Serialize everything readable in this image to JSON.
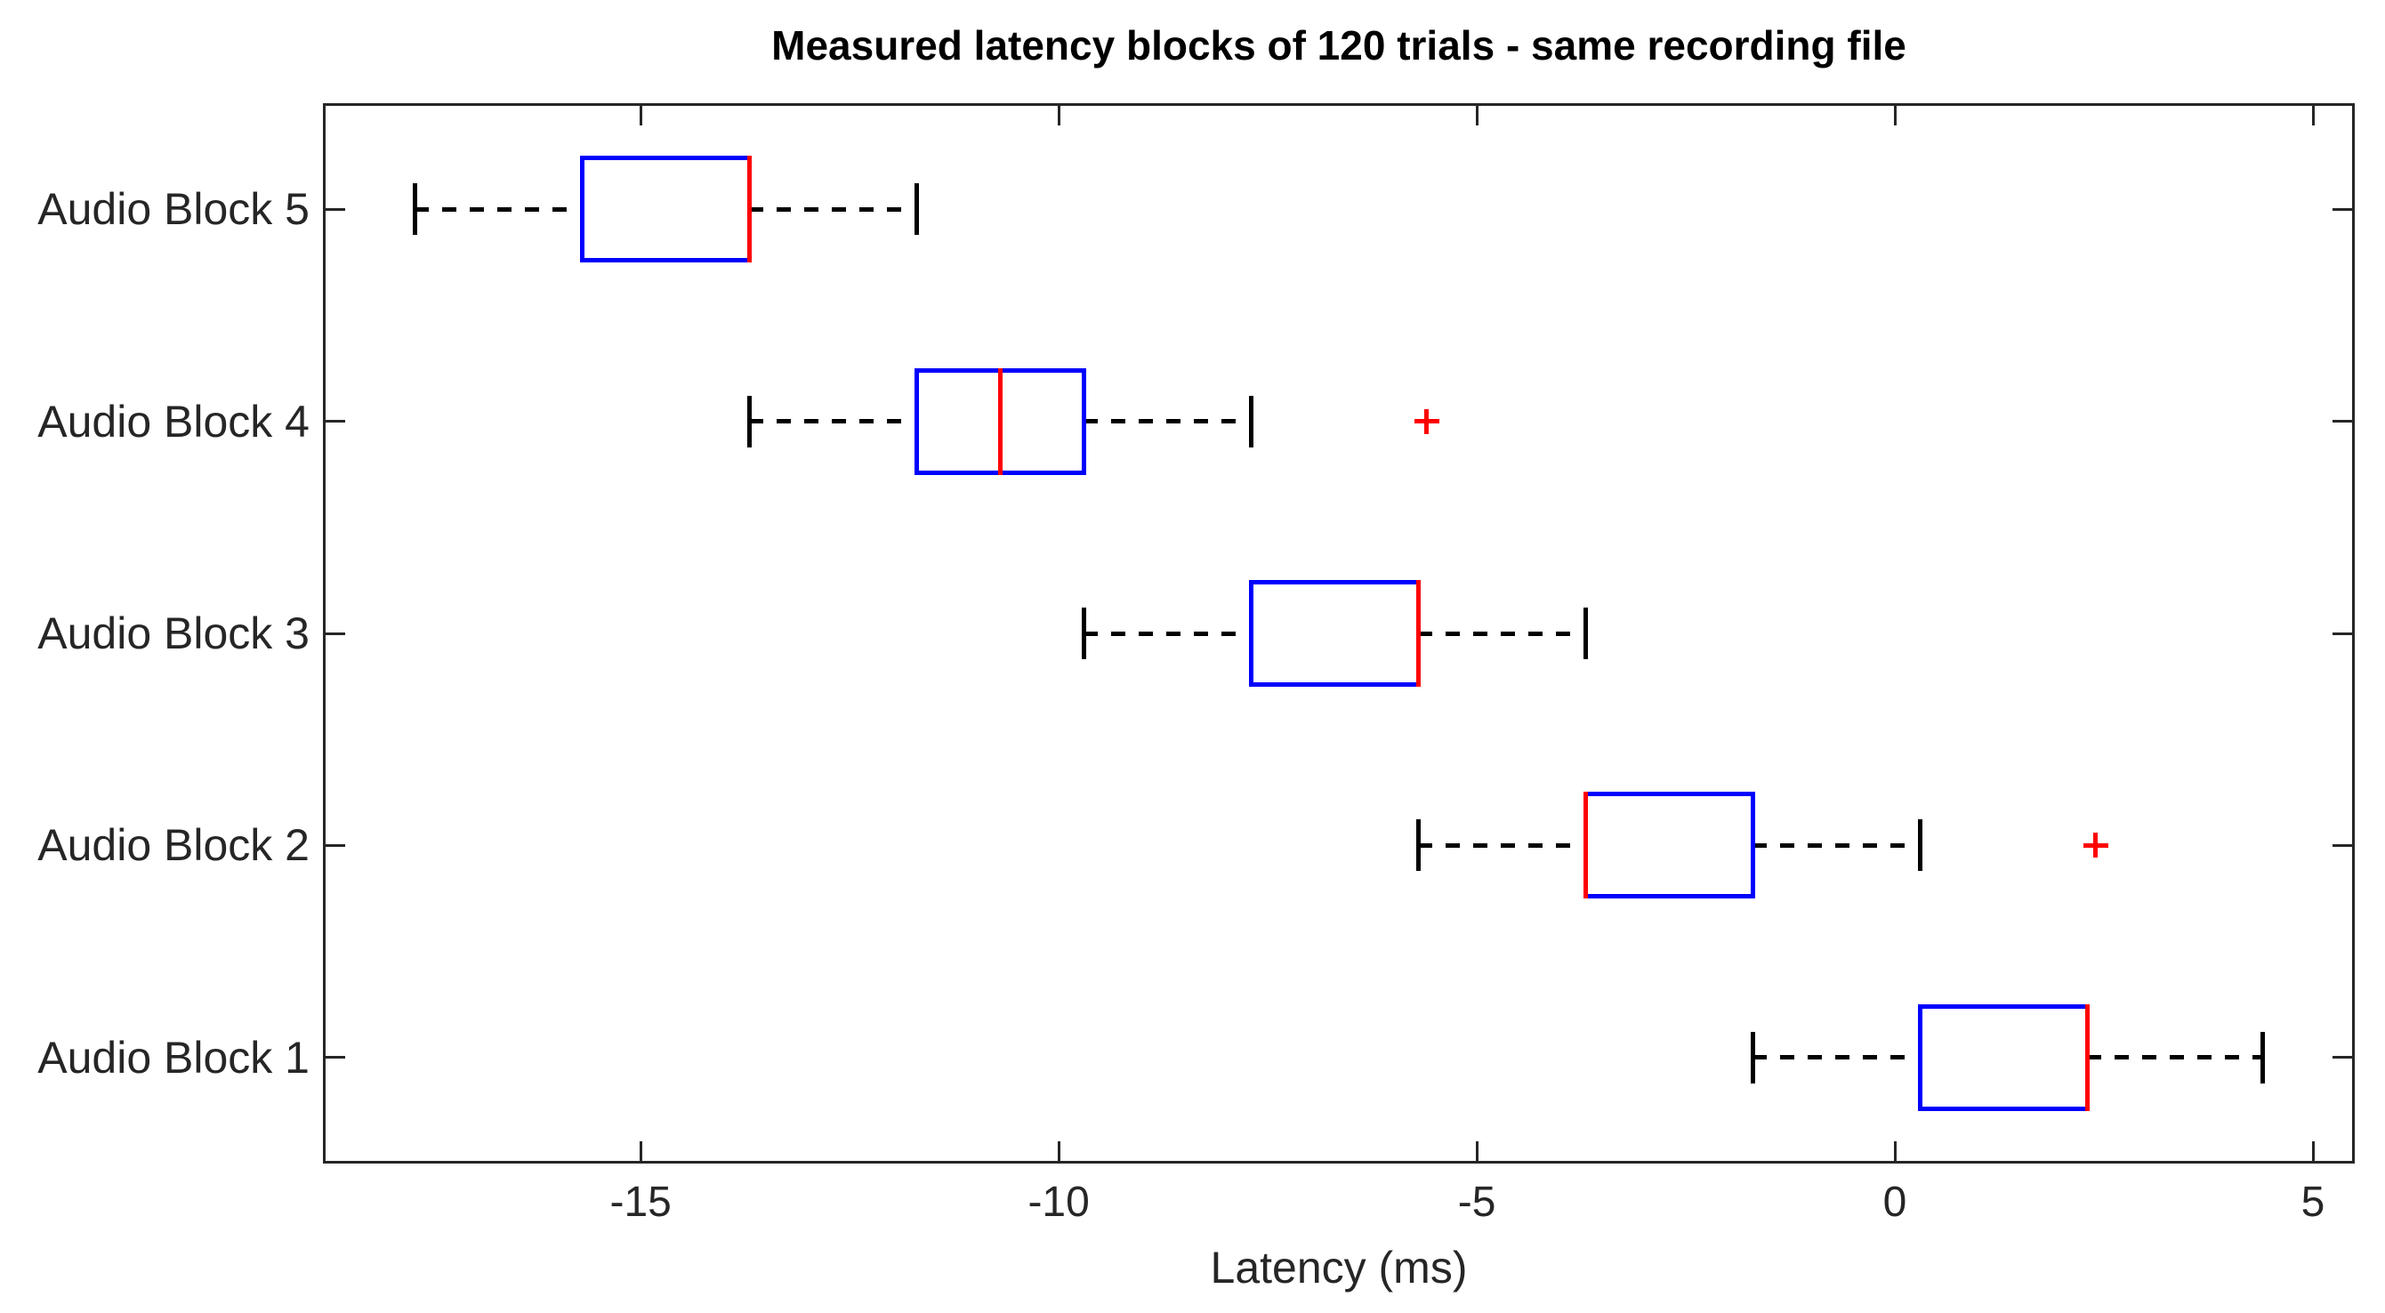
{
  "chart_data": {
    "type": "boxplot",
    "orientation": "horizontal",
    "title": "Measured latency blocks of 120 trials - same recording file",
    "xlabel": "Latency (ms)",
    "units": "ms",
    "xlim": [
      -18.8,
      5.5
    ],
    "xticks": [
      -15,
      -10,
      -5,
      0,
      5
    ],
    "grid": false,
    "legend": "none",
    "rows": [
      {
        "label": "Audio Block 5",
        "whisker_low": -17.7,
        "q1": -15.7,
        "median": -13.7,
        "q3": -13.7,
        "whisker_high": -11.7,
        "outliers": []
      },
      {
        "label": "Audio Block 4",
        "whisker_low": -13.7,
        "q1": -11.7,
        "median": -10.7,
        "q3": -9.7,
        "whisker_high": -7.7,
        "outliers": [
          -5.6
        ]
      },
      {
        "label": "Audio Block 3",
        "whisker_low": -9.7,
        "q1": -7.7,
        "median": -5.7,
        "q3": -5.7,
        "whisker_high": -3.7,
        "outliers": []
      },
      {
        "label": "Audio Block 2",
        "whisker_low": -5.7,
        "q1": -3.7,
        "median": -3.7,
        "q3": -1.7,
        "whisker_high": 0.3,
        "outliers": [
          2.4
        ]
      },
      {
        "label": "Audio Block 1",
        "whisker_low": -1.7,
        "q1": 0.3,
        "median": 2.3,
        "q3": 2.3,
        "whisker_high": 4.4,
        "outliers": []
      }
    ],
    "colors": {
      "box": "#0000ff",
      "median": "#ff0000",
      "whisker": "#000000",
      "outlier": "#ff0000",
      "axis": "#262626",
      "tick_text": "#262626",
      "title_text": "#000000",
      "background": "#ffffff"
    }
  }
}
